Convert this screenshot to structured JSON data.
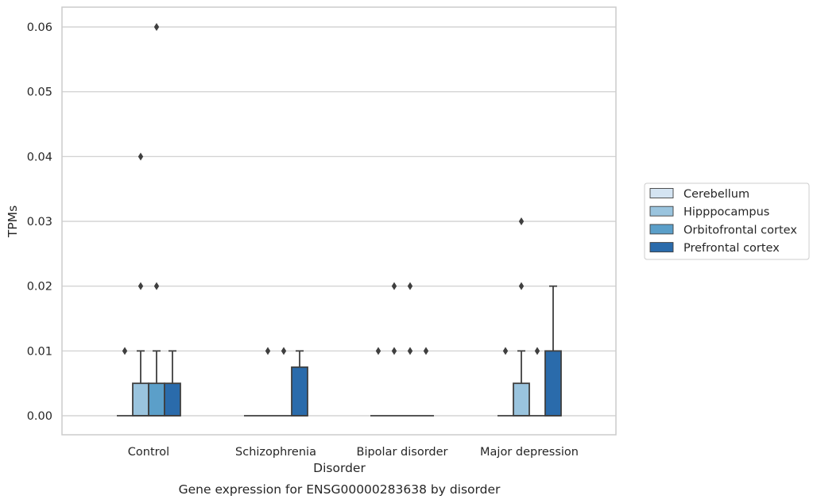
{
  "chart_data": {
    "type": "box",
    "caption": "Gene expression for ENSG00000283638 by disorder",
    "xlabel": "Disorder",
    "ylabel": "TPMs",
    "ylim": [
      -0.003,
      0.063
    ],
    "yticks": [
      0.0,
      0.01,
      0.02,
      0.03,
      0.04,
      0.05,
      0.06
    ],
    "ytick_labels": [
      "0.00",
      "0.01",
      "0.02",
      "0.03",
      "0.04",
      "0.05",
      "0.06"
    ],
    "grid": true,
    "legend_position": "right-outside",
    "categories": [
      "Control",
      "Schizophrenia",
      "Bipolar disorder",
      "Major depression"
    ],
    "series": [
      {
        "name": "Cerebellum",
        "color": "#d4e4f2",
        "boxes": [
          {
            "q1": 0,
            "median": 0,
            "q3": 0,
            "whisker_low": 0,
            "whisker_high": 0,
            "outliers": [
              0.01
            ]
          },
          {
            "q1": 0,
            "median": 0,
            "q3": 0,
            "whisker_low": 0,
            "whisker_high": 0,
            "outliers": []
          },
          {
            "q1": 0,
            "median": 0,
            "q3": 0,
            "whisker_low": 0,
            "whisker_high": 0,
            "outliers": [
              0.01
            ]
          },
          {
            "q1": 0,
            "median": 0,
            "q3": 0,
            "whisker_low": 0,
            "whisker_high": 0,
            "outliers": [
              0.01
            ]
          }
        ]
      },
      {
        "name": "Hipppocampus",
        "color": "#9ac4de",
        "boxes": [
          {
            "q1": 0,
            "median": 0,
            "q3": 0.005,
            "whisker_low": 0,
            "whisker_high": 0.01,
            "outliers": [
              0.02,
              0.04
            ]
          },
          {
            "q1": 0,
            "median": 0,
            "q3": 0,
            "whisker_low": 0,
            "whisker_high": 0,
            "outliers": [
              0.01
            ]
          },
          {
            "q1": 0,
            "median": 0,
            "q3": 0,
            "whisker_low": 0,
            "whisker_high": 0,
            "outliers": [
              0.01,
              0.02
            ]
          },
          {
            "q1": 0,
            "median": 0,
            "q3": 0.005,
            "whisker_low": 0,
            "whisker_high": 0.01,
            "outliers": [
              0.02,
              0.03
            ]
          }
        ]
      },
      {
        "name": "Orbitofrontal cortex",
        "color": "#5b9fc9",
        "boxes": [
          {
            "q1": 0,
            "median": 0,
            "q3": 0.005,
            "whisker_low": 0,
            "whisker_high": 0.01,
            "outliers": [
              0.02,
              0.06
            ]
          },
          {
            "q1": 0,
            "median": 0,
            "q3": 0,
            "whisker_low": 0,
            "whisker_high": 0,
            "outliers": [
              0.01
            ]
          },
          {
            "q1": 0,
            "median": 0,
            "q3": 0,
            "whisker_low": 0,
            "whisker_high": 0,
            "outliers": [
              0.01,
              0.02
            ]
          },
          {
            "q1": 0,
            "median": 0,
            "q3": 0,
            "whisker_low": 0,
            "whisker_high": 0,
            "outliers": [
              0.01
            ]
          }
        ]
      },
      {
        "name": "Prefrontal cortex",
        "color": "#2a6bab",
        "boxes": [
          {
            "q1": 0,
            "median": 0,
            "q3": 0.005,
            "whisker_low": 0,
            "whisker_high": 0.01,
            "outliers": []
          },
          {
            "q1": 0,
            "median": 0,
            "q3": 0.0075,
            "whisker_low": 0,
            "whisker_high": 0.01,
            "outliers": []
          },
          {
            "q1": 0,
            "median": 0,
            "q3": 0,
            "whisker_low": 0,
            "whisker_high": 0,
            "outliers": [
              0.01
            ]
          },
          {
            "q1": 0,
            "median": 0,
            "q3": 0.01,
            "whisker_low": 0,
            "whisker_high": 0.02,
            "outliers": []
          }
        ]
      }
    ]
  }
}
